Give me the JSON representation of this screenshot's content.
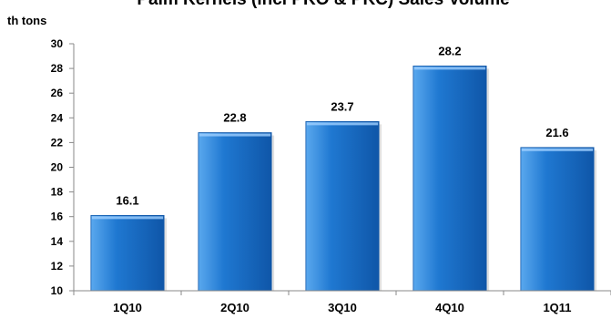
{
  "chart_data": {
    "type": "bar",
    "title": "Palm Kernels (incl PKO & PKC) Sales Volume",
    "ylabel": "th tons",
    "xlabel": "",
    "categories": [
      "1Q10",
      "2Q10",
      "3Q10",
      "4Q10",
      "1Q11"
    ],
    "values": [
      16.1,
      22.8,
      23.7,
      28.2,
      21.6
    ],
    "data_labels": [
      "16.1",
      "22.8",
      "23.7",
      "28.2",
      "21.6"
    ],
    "ylim": [
      10,
      30
    ],
    "yticks": [
      10,
      12,
      14,
      16,
      18,
      20,
      22,
      24,
      26,
      28,
      30
    ],
    "grid": false,
    "legend": "none",
    "colors": {
      "bar": "#1f78d1",
      "bar_dark": "#0f56a8",
      "bar_light": "#5aa8ee",
      "axis": "#888888"
    }
  }
}
